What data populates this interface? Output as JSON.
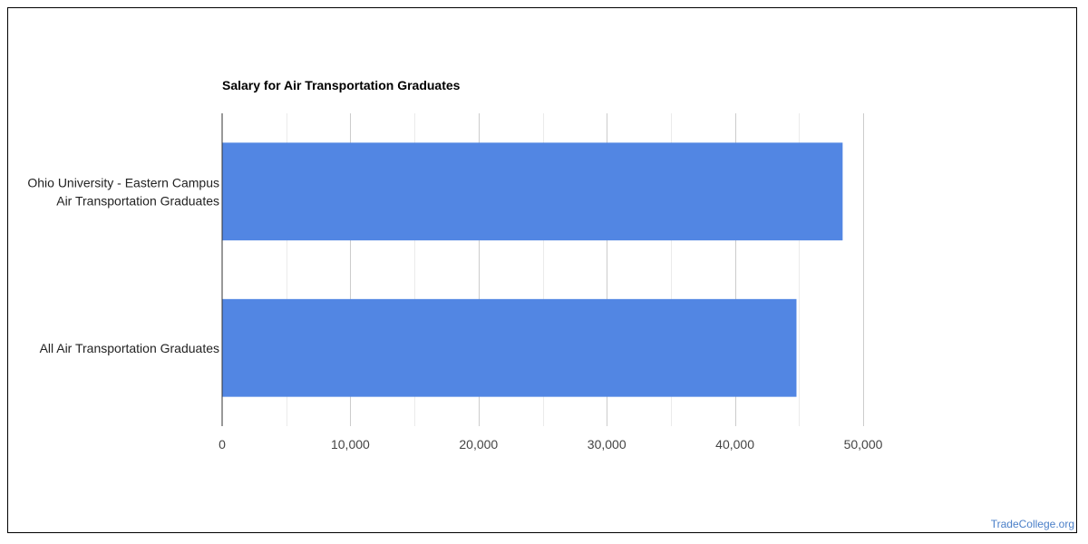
{
  "chart_data": {
    "type": "bar",
    "orientation": "horizontal",
    "title": "Salary for Air Transportation Graduates",
    "categories": [
      [
        "Ohio University - Eastern Campus",
        "Air Transportation Graduates"
      ],
      [
        "All Air Transportation Graduates"
      ]
    ],
    "values": [
      48400,
      44800
    ],
    "xlim": [
      0,
      50000
    ],
    "xticks": [
      0,
      10000,
      20000,
      30000,
      40000,
      50000
    ],
    "xtick_labels": [
      "0",
      "10,000",
      "20,000",
      "30,000",
      "40,000",
      "50,000"
    ],
    "grid": true,
    "legend": "none",
    "bar_color": "#5286e3"
  },
  "footer": {
    "source": "TradeCollege.org"
  }
}
